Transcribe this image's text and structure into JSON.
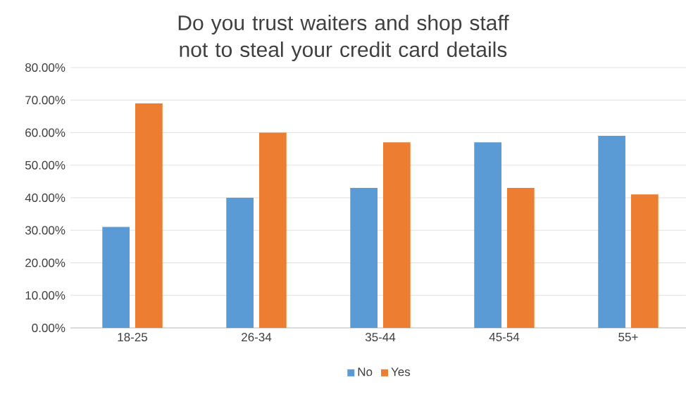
{
  "chart_data": {
    "type": "bar",
    "title": "Do you trust waiters and shop staff not to steal your credit card details",
    "categories": [
      "18-25",
      "26-34",
      "35-44",
      "45-54",
      "55+"
    ],
    "series": [
      {
        "name": "No",
        "color": "#5b9bd5",
        "values": [
          31,
          40,
          43,
          57,
          59
        ]
      },
      {
        "name": "Yes",
        "color": "#ed7d31",
        "values": [
          69,
          60,
          57,
          43,
          41
        ]
      }
    ],
    "ylim": [
      0,
      80
    ],
    "yticks": [
      {
        "value": 0,
        "label": "0.00%"
      },
      {
        "value": 10,
        "label": "10.00%"
      },
      {
        "value": 20,
        "label": "20.00%"
      },
      {
        "value": 30,
        "label": "30.00%"
      },
      {
        "value": 40,
        "label": "40.00%"
      },
      {
        "value": 50,
        "label": "50.00%"
      },
      {
        "value": 60,
        "label": "60.00%"
      },
      {
        "value": 70,
        "label": "70.00%"
      },
      {
        "value": 80,
        "label": "80.00%"
      }
    ],
    "grid": "y",
    "legend": "bottom"
  }
}
